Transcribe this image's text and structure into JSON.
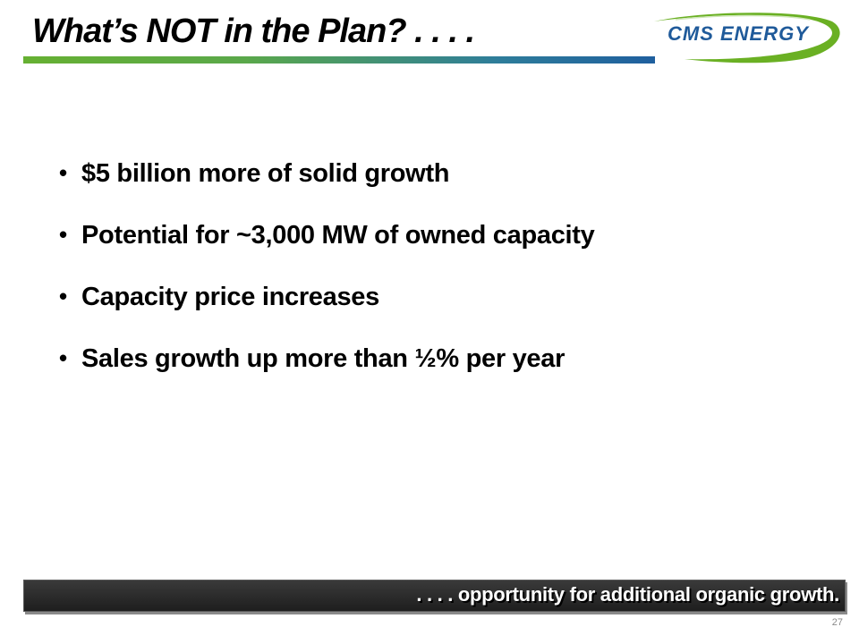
{
  "slide": {
    "title": "What’s NOT in the Plan? . . . .",
    "logo_text": "CMS ENERGY",
    "bullets": [
      "$5 billion more of solid growth",
      "Potential for ~3,000 MW of owned capacity",
      "Capacity price increases",
      "Sales growth up more than ½% per year"
    ],
    "bullet_glyph": "•",
    "footer_text": ". . . . opportunity for additional organic growth.",
    "page_number": "27"
  },
  "colors": {
    "title_rule_start": "#66b032",
    "title_rule_end": "#1f5f9e",
    "logo_blue": "#1f5a9a",
    "logo_green": "#6ab023",
    "footer_bar": "#262626"
  },
  "icons": {
    "logo": "cms-energy-logo-icon"
  }
}
